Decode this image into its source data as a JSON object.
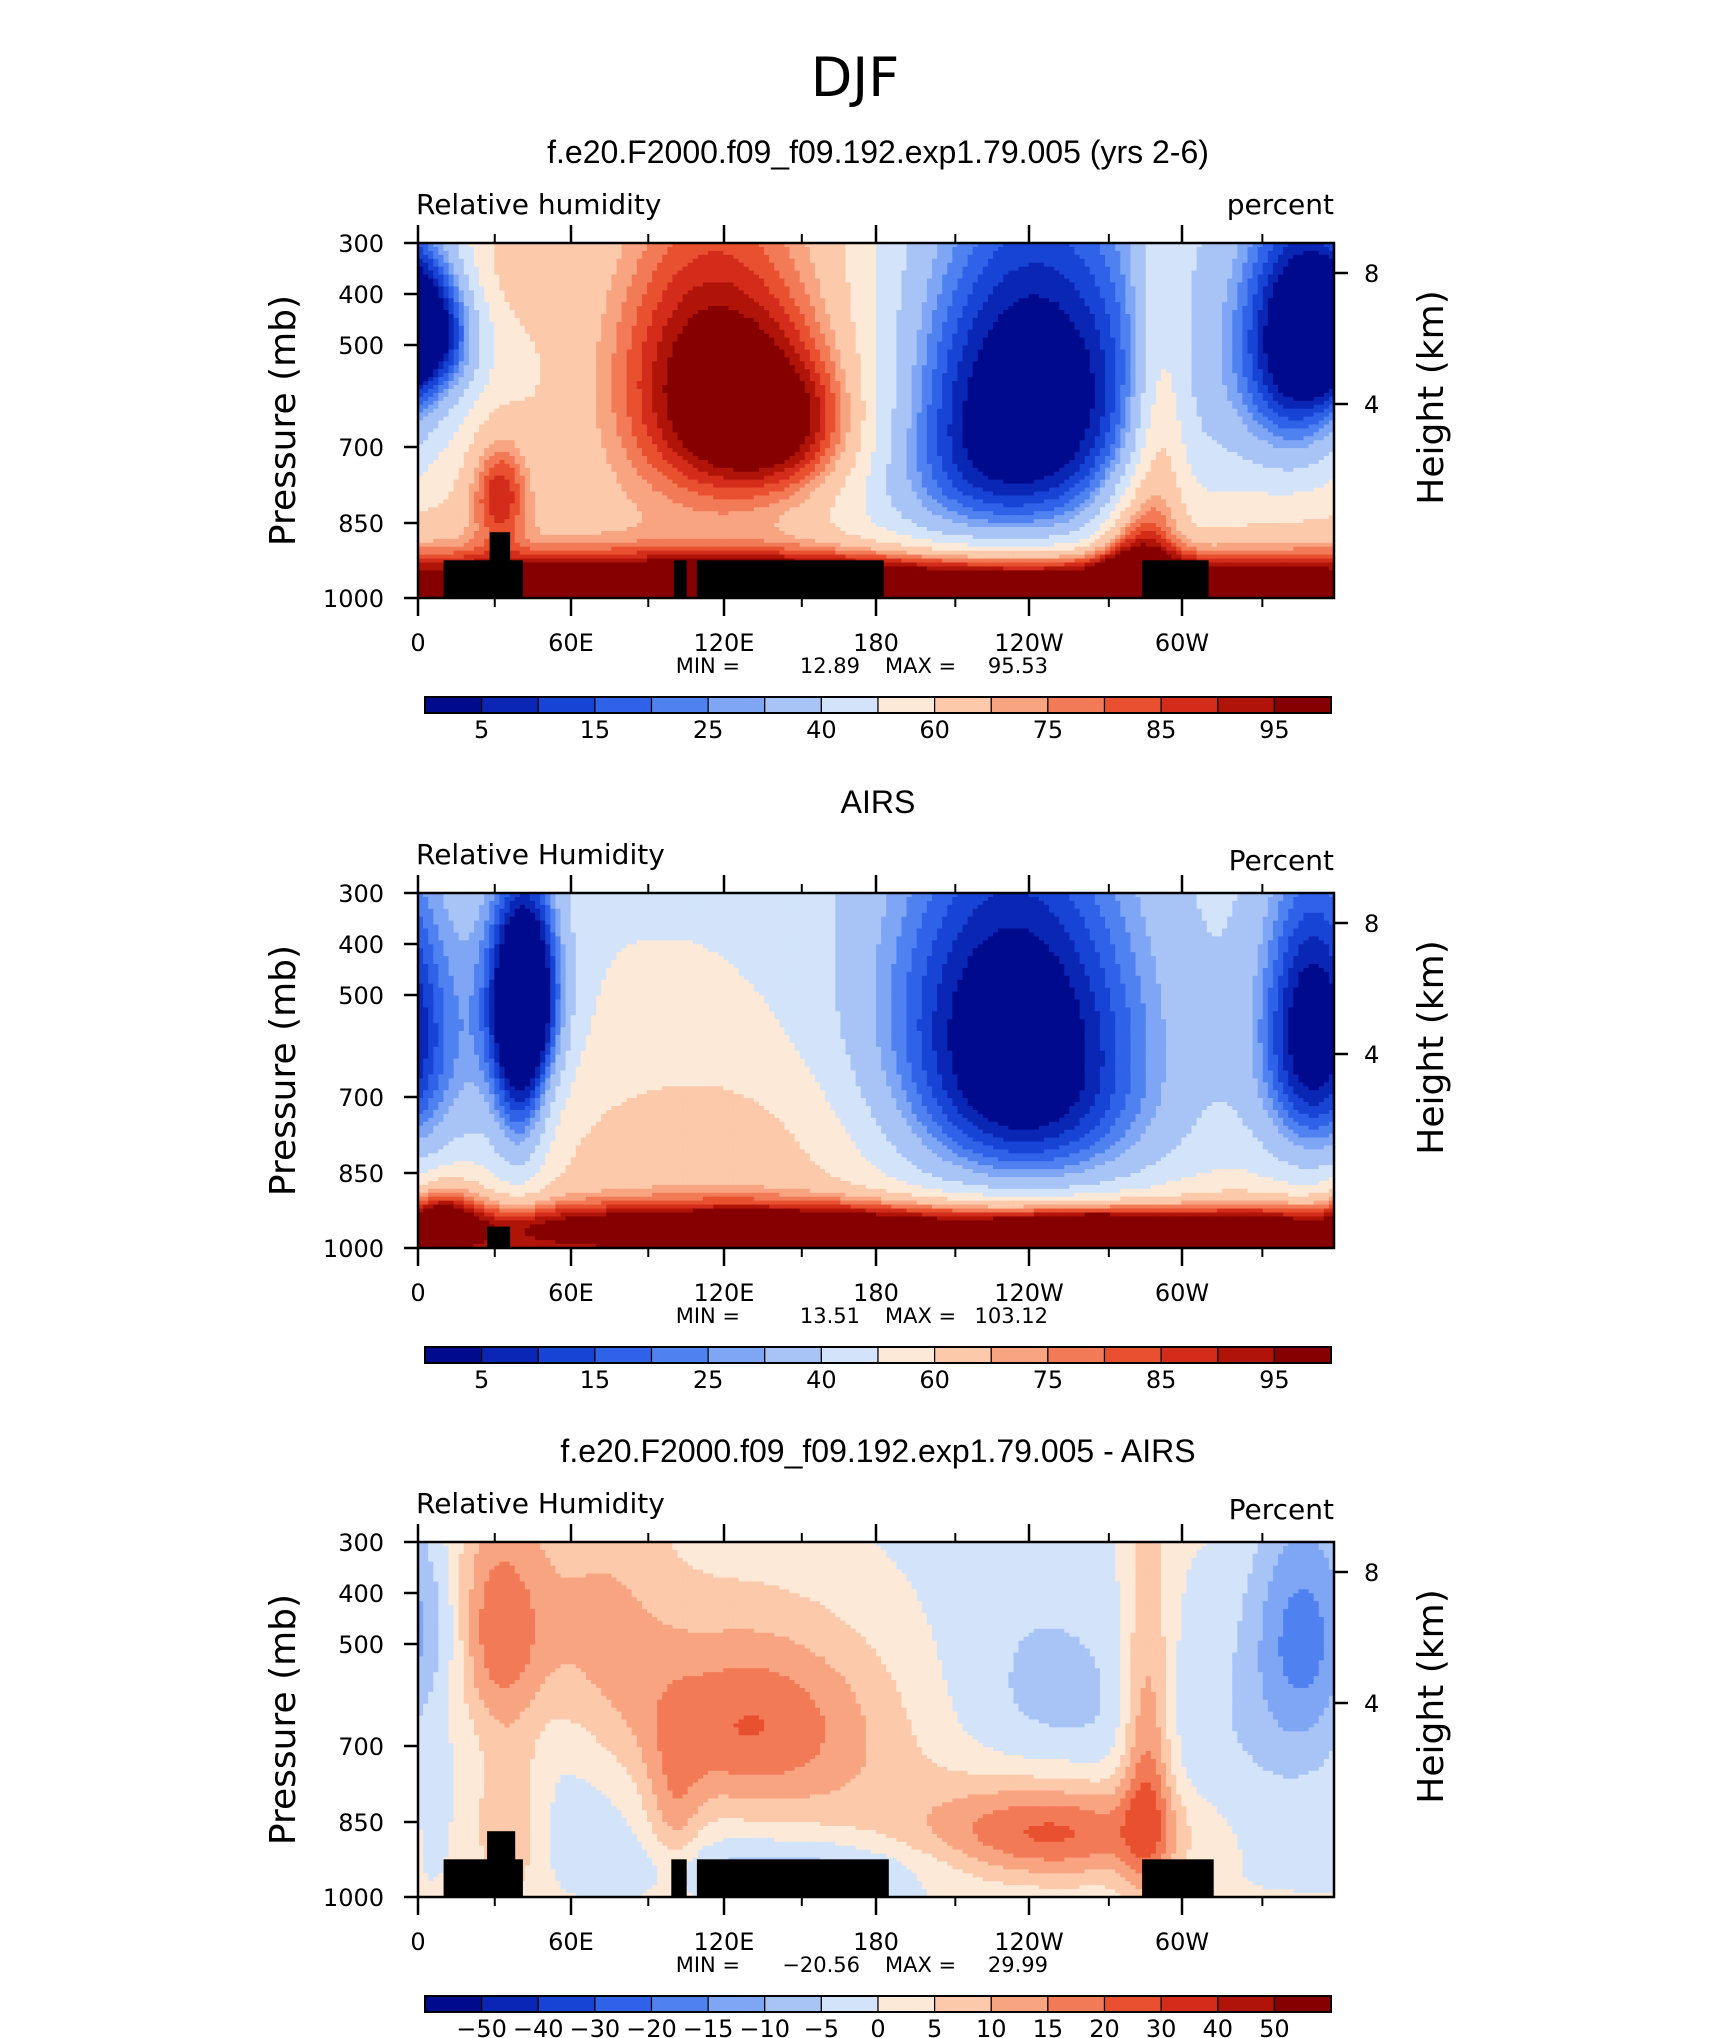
{
  "figure": {
    "title": "DJF"
  },
  "chart_data": [
    {
      "type": "heatmap",
      "title": "f.e20.F2000.f09_f09.192.exp1.79.005 (yrs 2-6)",
      "left_label": "Relative humidity",
      "right_label": "percent",
      "ylabel": "Pressure (mb)",
      "ylabel2": "Height (km)",
      "x_ticks": [
        "0",
        "60E",
        "120E",
        "180",
        "120W",
        "60W"
      ],
      "y_ticks": [
        "300",
        "400",
        "500",
        "700",
        "850",
        "1000"
      ],
      "y2_ticks": [
        "8",
        "4"
      ],
      "xlim": [
        0,
        358
      ],
      "ylim": [
        1000,
        300
      ],
      "stats": {
        "min_label": "MIN =",
        "min": "12.89",
        "max_label": "MAX =",
        "max": "95.53"
      },
      "colorbar": {
        "labels": [
          "5",
          "15",
          "25",
          "40",
          "60",
          "75",
          "85",
          "95"
        ]
      },
      "terrain": [
        [
          10,
          41,
          880
        ],
        [
          28,
          36,
          800
        ],
        [
          100,
          105,
          880
        ],
        [
          109,
          182,
          880
        ],
        [
          283,
          309,
          880
        ]
      ],
      "features": [
        {
          "lon": 5,
          "p": 400,
          "v": -44,
          "wx": 14,
          "wp": 70
        },
        {
          "lon": 110,
          "p": 460,
          "v": 35,
          "wx": 28,
          "wp": 170
        },
        {
          "lon": 142,
          "p": 560,
          "v": 32,
          "wx": 25,
          "wp": 100
        },
        {
          "lon": 155,
          "p": 400,
          "v": 12,
          "wx": 35,
          "wp": 200
        },
        {
          "lon": 32,
          "p": 700,
          "v": 28,
          "wx": 8,
          "wp": 90
        },
        {
          "lon": 240,
          "p": 480,
          "v": -58,
          "wx": 42,
          "wp": 230
        },
        {
          "lon": 218,
          "p": 700,
          "v": -18,
          "wx": 40,
          "wp": 150
        },
        {
          "lon": 343,
          "p": 420,
          "v": -55,
          "wx": 18,
          "wp": 150
        },
        {
          "lon": 290,
          "p": 560,
          "v": 25,
          "wx": 8,
          "wp": 200
        },
        {
          "lon": 280,
          "p": 850,
          "v": 28,
          "wx": 10,
          "wp": 150
        },
        {
          "lon": 185,
          "p": 930,
          "v": 38,
          "wx": 180,
          "wp": 55
        },
        {
          "lon": 30,
          "p": 330,
          "v": 10,
          "wx": 15,
          "wp": 60
        }
      ],
      "profile": {
        "base": 55,
        "surface": 86,
        "surface_rise": 420,
        "surface_scale": 25
      },
      "palette": "rh"
    },
    {
      "type": "heatmap",
      "title": "AIRS",
      "left_label": "Relative Humidity",
      "right_label": "Percent",
      "ylabel": "Pressure (mb)",
      "ylabel2": "Height (km)",
      "x_ticks": [
        "0",
        "60E",
        "120E",
        "180",
        "120W",
        "60W"
      ],
      "y_ticks": [
        "300",
        "400",
        "500",
        "700",
        "850",
        "1000"
      ],
      "y2_ticks": [
        "8",
        "4"
      ],
      "xlim": [
        0,
        358
      ],
      "ylim": [
        1000,
        300
      ],
      "stats": {
        "min_label": "MIN =",
        "min": "13.51",
        "max_label": "MAX =",
        "max": "103.12"
      },
      "colorbar": {
        "labels": [
          "5",
          "15",
          "25",
          "40",
          "60",
          "75",
          "85",
          "95"
        ]
      },
      "terrain": [
        [
          27,
          36,
          930
        ]
      ],
      "features": [
        {
          "lon": 42,
          "p": 420,
          "v": -60,
          "wx": 10,
          "wp": 110
        },
        {
          "lon": 40,
          "p": 620,
          "v": -25,
          "wx": 8,
          "wp": 140
        },
        {
          "lon": 5,
          "p": 520,
          "v": -22,
          "wx": 25,
          "wp": 200
        },
        {
          "lon": 232,
          "p": 460,
          "v": -50,
          "wx": 40,
          "wp": 220
        },
        {
          "lon": 240,
          "p": 680,
          "v": -18,
          "wx": 40,
          "wp": 150
        },
        {
          "lon": 348,
          "p": 480,
          "v": -35,
          "wx": 14,
          "wp": 170
        },
        {
          "lon": 120,
          "p": 680,
          "v": 12,
          "wx": 60,
          "wp": 160
        },
        {
          "lon": 150,
          "p": 930,
          "v": 42,
          "wx": 115,
          "wp": 55
        },
        {
          "lon": 265,
          "p": 950,
          "v": 40,
          "wx": 28,
          "wp": 50
        },
        {
          "lon": 330,
          "p": 950,
          "v": 30,
          "wx": 20,
          "wp": 60
        },
        {
          "lon": 10,
          "p": 900,
          "v": 28,
          "wx": 10,
          "wp": 80
        }
      ],
      "profile": {
        "base": 48,
        "surface": 78,
        "surface_rise": 400,
        "surface_scale": 25
      },
      "palette": "rh"
    },
    {
      "type": "heatmap",
      "title": "f.e20.F2000.f09_f09.192.exp1.79.005 - AIRS",
      "left_label": "Relative Humidity",
      "right_label": "Percent",
      "ylabel": "Pressure (mb)",
      "ylabel2": "Height (km)",
      "x_ticks": [
        "0",
        "60E",
        "120E",
        "180",
        "120W",
        "60W"
      ],
      "y_ticks": [
        "300",
        "400",
        "500",
        "700",
        "850",
        "1000"
      ],
      "y2_ticks": [
        "8",
        "4"
      ],
      "xlim": [
        0,
        358
      ],
      "ylim": [
        1000,
        300
      ],
      "stats": {
        "min_label": "MIN =",
        "min": "−20.56",
        "max_label": "MAX =",
        "max": "29.99"
      },
      "colorbar": {
        "labels": [
          "−50",
          "−40",
          "−30",
          "−20",
          "−15",
          "−10",
          "−5",
          "0",
          "5",
          "10",
          "15",
          "20",
          "30",
          "40",
          "50"
        ]
      },
      "terrain": [
        [
          10,
          41,
          880
        ],
        [
          27,
          38,
          800
        ],
        [
          99,
          105,
          880
        ],
        [
          109,
          184,
          880
        ],
        [
          283,
          311,
          880
        ]
      ],
      "features": [
        {
          "lon": 345,
          "p": 410,
          "v": -16,
          "wx": 14,
          "wp": 130
        },
        {
          "lon": 10,
          "p": 400,
          "v": -7,
          "wx": 10,
          "wp": 70
        },
        {
          "lon": 240,
          "p": 520,
          "v": -7,
          "wx": 30,
          "wp": 160
        },
        {
          "lon": 150,
          "p": 900,
          "v": -8,
          "wx": 40,
          "wp": 60
        },
        {
          "lon": 30,
          "p": 400,
          "v": 18,
          "wx": 14,
          "wp": 100
        },
        {
          "lon": 35,
          "p": 760,
          "v": 12,
          "wx": 10,
          "wp": 180
        },
        {
          "lon": 125,
          "p": 560,
          "v": 20,
          "wx": 35,
          "wp": 130
        },
        {
          "lon": 70,
          "p": 400,
          "v": 10,
          "wx": 20,
          "wp": 120
        },
        {
          "lon": 250,
          "p": 800,
          "v": 22,
          "wx": 35,
          "wp": 100
        },
        {
          "lon": 285,
          "p": 650,
          "v": 18,
          "wx": 7,
          "wp": 250
        },
        {
          "lon": 100,
          "p": 760,
          "v": 10,
          "wx": 8,
          "wp": 130
        }
      ],
      "profile": {
        "base": 4,
        "surface": 0,
        "surface_rise": 400,
        "surface_scale": 40
      },
      "palette": "diff"
    }
  ],
  "palettes": {
    "rh": {
      "levels": [
        5,
        10,
        15,
        20,
        25,
        30,
        40,
        50,
        60,
        70,
        75,
        80,
        85,
        90,
        95
      ],
      "colors": [
        "#000a8c",
        "#0a26b5",
        "#1844d6",
        "#2f62e8",
        "#4f82f0",
        "#7ea6f4",
        "#a8c4f6",
        "#d3e4fa",
        "#fde9d8",
        "#fcc9ab",
        "#f8a481",
        "#f27a56",
        "#e8502f",
        "#d42c1a",
        "#b01408",
        "#860000"
      ]
    },
    "diff": {
      "levels": [
        -50,
        -40,
        -30,
        -20,
        -15,
        -10,
        -5,
        0,
        5,
        10,
        15,
        20,
        30,
        40,
        50
      ],
      "colors": [
        "#000a8c",
        "#0a26b5",
        "#1844d6",
        "#2f62e8",
        "#4f82f0",
        "#7ea6f4",
        "#a8c4f6",
        "#d3e4fa",
        "#fde9d8",
        "#fcc9ab",
        "#f8a481",
        "#f27a56",
        "#e8502f",
        "#d42c1a",
        "#b01408",
        "#860000"
      ]
    }
  }
}
